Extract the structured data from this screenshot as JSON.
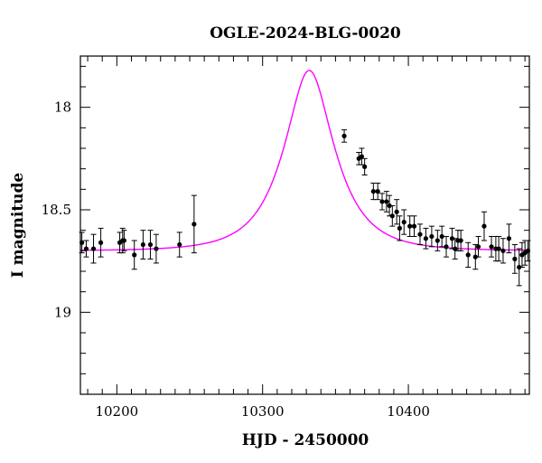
{
  "chart_data": {
    "type": "scatter",
    "title": "OGLE-2024-BLG-0020",
    "xlabel": "HJD - 2450000",
    "ylabel": "I magnitude",
    "xlim": [
      10175,
      10483
    ],
    "ylim": [
      19.4,
      17.75
    ],
    "y_inverted": true,
    "x_ticks": [
      10200,
      10300,
      10400
    ],
    "y_ticks": [
      18,
      18.5,
      19
    ],
    "colors": {
      "points": "#000000",
      "model": "#ff00ff"
    },
    "model": {
      "type": "microlensing",
      "baseline_mag": 18.7,
      "peak_mag": 17.82,
      "t0": 10332,
      "tE": 30
    },
    "series": [
      {
        "x": [
          10176,
          10179,
          10184,
          10189,
          10202,
          10204,
          10205,
          10212,
          10218,
          10223,
          10227,
          10243,
          10253,
          10356,
          10366,
          10368,
          10370,
          10376,
          10379,
          10382,
          10385,
          10387,
          10389,
          10392,
          10394,
          10397,
          10401,
          10404,
          10408,
          10412,
          10416,
          10420,
          10423,
          10426,
          10430,
          10432,
          10434,
          10436,
          10441,
          10446,
          10448,
          10452,
          10457,
          10460,
          10462,
          10465,
          10469,
          10473,
          10476,
          10478,
          10480,
          10482
        ],
        "y": [
          18.66,
          18.69,
          18.69,
          18.66,
          18.66,
          18.65,
          18.65,
          18.72,
          18.67,
          18.67,
          18.69,
          18.67,
          18.57,
          18.14,
          18.25,
          18.24,
          18.29,
          18.41,
          18.41,
          18.46,
          18.46,
          18.48,
          18.53,
          18.51,
          18.59,
          18.56,
          18.58,
          18.58,
          18.62,
          18.64,
          18.63,
          18.65,
          18.63,
          18.68,
          18.64,
          18.69,
          18.65,
          18.65,
          18.72,
          18.73,
          18.68,
          18.58,
          18.68,
          18.69,
          18.69,
          18.7,
          18.64,
          18.74,
          18.78,
          18.72,
          18.71,
          18.7
        ],
        "err": [
          0.05,
          0.04,
          0.07,
          0.07,
          0.05,
          0.06,
          0.05,
          0.07,
          0.07,
          0.07,
          0.07,
          0.06,
          0.14,
          0.03,
          0.03,
          0.04,
          0.04,
          0.04,
          0.04,
          0.04,
          0.05,
          0.05,
          0.05,
          0.06,
          0.06,
          0.06,
          0.05,
          0.05,
          0.05,
          0.05,
          0.05,
          0.05,
          0.05,
          0.05,
          0.05,
          0.05,
          0.05,
          0.05,
          0.06,
          0.06,
          0.05,
          0.07,
          0.05,
          0.06,
          0.06,
          0.06,
          0.07,
          0.07,
          0.09,
          0.06,
          0.06,
          0.05
        ]
      }
    ]
  }
}
